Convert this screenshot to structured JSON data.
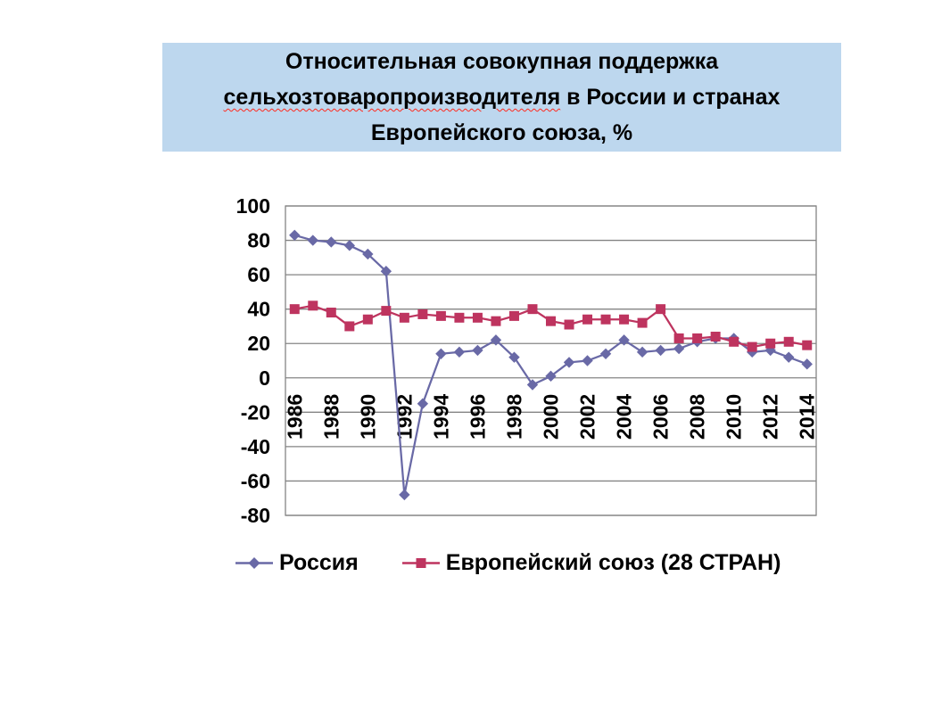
{
  "title": {
    "line1": "Относительная совокупная поддержка",
    "line2_word": "сельхозтоваропроизводителя",
    "line2_rest": " в России и странах",
    "line3": "Европейского союза, %",
    "background": "#BDD7EE"
  },
  "legend": [
    {
      "label": "Россия",
      "marker": "diamond",
      "color": "#6969A6"
    },
    {
      "label": "Европейский союз (28 СТРАН)",
      "marker": "square",
      "color": "#BE345F"
    }
  ],
  "chart_data": {
    "type": "line",
    "title": "Относительная совокупная поддержка сельхозтоваропроизводителя в России и странах Европейского союза, %",
    "x": [
      1986,
      1987,
      1988,
      1989,
      1990,
      1991,
      1992,
      1993,
      1994,
      1995,
      1996,
      1997,
      1998,
      1999,
      2000,
      2001,
      2002,
      2003,
      2004,
      2005,
      2006,
      2007,
      2008,
      2009,
      2010,
      2011,
      2012,
      2013,
      2014
    ],
    "x_tick_labels": [
      "1986",
      "1988",
      "1990",
      "1992",
      "1994",
      "1996",
      "1998",
      "2000",
      "2002",
      "2004",
      "2006",
      "2008",
      "2010",
      "2012",
      "2014"
    ],
    "ytick_labels": [
      "100",
      "80",
      "60",
      "40",
      "20",
      "0",
      "-20",
      "-40",
      "-60",
      "-80"
    ],
    "ylim": [
      -80,
      100
    ],
    "ytick_step": 20,
    "grid": true,
    "grid_color": "#848484",
    "legend_position": "bottom",
    "series": [
      {
        "name": "Россия",
        "slug": "russia",
        "color": "#6969A6",
        "marker": "diamond",
        "values": [
          83,
          80,
          79,
          77,
          72,
          62,
          -68,
          -15,
          14,
          15,
          16,
          22,
          12,
          -4,
          1,
          9,
          10,
          14,
          22,
          15,
          16,
          17,
          21,
          23,
          23,
          15,
          16,
          12,
          8
        ]
      },
      {
        "name": "Европейский союз (28 СТРАН)",
        "slug": "eu",
        "color": "#BE345F",
        "marker": "square",
        "values": [
          40,
          42,
          38,
          30,
          34,
          39,
          35,
          37,
          36,
          35,
          35,
          33,
          36,
          40,
          33,
          31,
          34,
          34,
          34,
          32,
          40,
          23,
          23,
          24,
          21,
          18,
          20,
          21,
          19
        ]
      }
    ]
  }
}
